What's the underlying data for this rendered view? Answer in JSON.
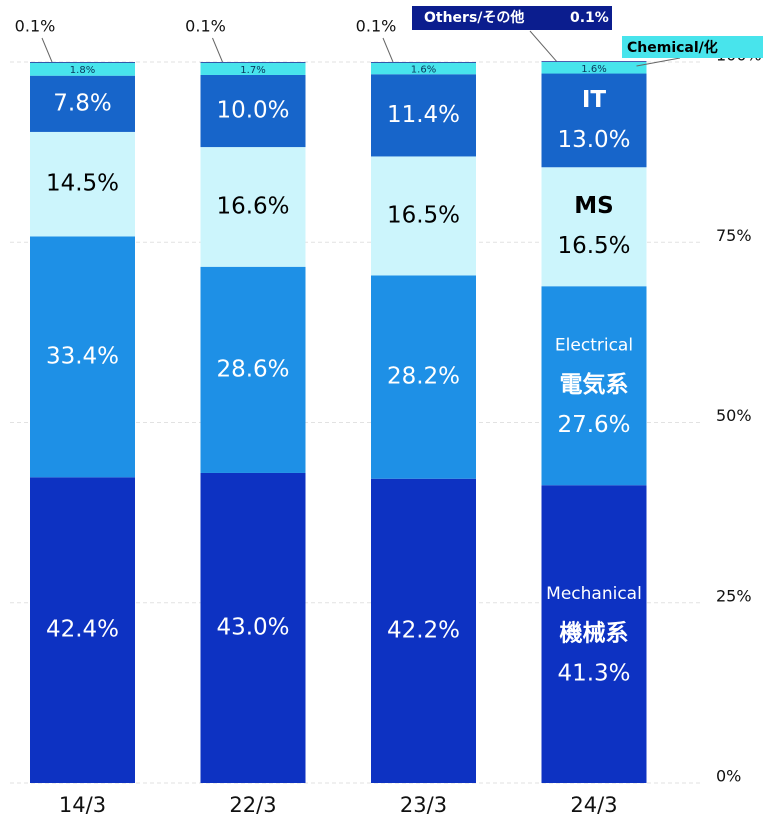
{
  "chart_data": {
    "type": "stacked_bar",
    "categories": [
      "14/3",
      "22/3",
      "23/3",
      "24/3"
    ],
    "series": [
      {
        "name": "Mechanical",
        "name2": "機械系",
        "color": "#0d32c2",
        "values": [
          42.4,
          43.0,
          42.2,
          41.3
        ],
        "value_labels": [
          "42.4%",
          "43.0%",
          "42.2%",
          "41.3%"
        ]
      },
      {
        "name": "Electrical",
        "name2": "電気系",
        "color": "#1e90e6",
        "values": [
          33.4,
          28.6,
          28.2,
          27.6
        ],
        "value_labels": [
          "33.4%",
          "28.6%",
          "28.2%",
          "27.6%"
        ]
      },
      {
        "name": "MS",
        "color": "#ccf5fc",
        "values": [
          14.5,
          16.6,
          16.5,
          16.5
        ],
        "value_labels": [
          "14.5%",
          "16.6%",
          "16.5%",
          "16.5%"
        ]
      },
      {
        "name": "IT",
        "color": "#1765ca",
        "values": [
          7.8,
          10.0,
          11.4,
          13.0
        ],
        "value_labels": [
          "7.8%",
          "10.0%",
          "11.4%",
          "13.0%"
        ]
      },
      {
        "name": "Chemical/化",
        "color": "#48e4ec",
        "values": [
          1.8,
          1.7,
          1.6,
          1.6
        ],
        "value_labels": [
          "1.8%",
          "1.7%",
          "1.6%",
          "1.6%"
        ]
      },
      {
        "name": "Others/その他",
        "color": "#0b1d8e",
        "values": [
          0.1,
          0.1,
          0.1,
          0.1
        ],
        "value_labels": [
          "0.1%",
          "0.1%",
          "0.1%",
          "0.1%"
        ]
      }
    ],
    "ylim": [
      0,
      100
    ],
    "yticks": [
      {
        "value": 0,
        "label": "0%"
      },
      {
        "value": 25,
        "label": "25%"
      },
      {
        "value": 50,
        "label": "50%"
      },
      {
        "value": 75,
        "label": "75%"
      },
      {
        "value": 100,
        "label": "100%"
      }
    ],
    "grid": true
  }
}
